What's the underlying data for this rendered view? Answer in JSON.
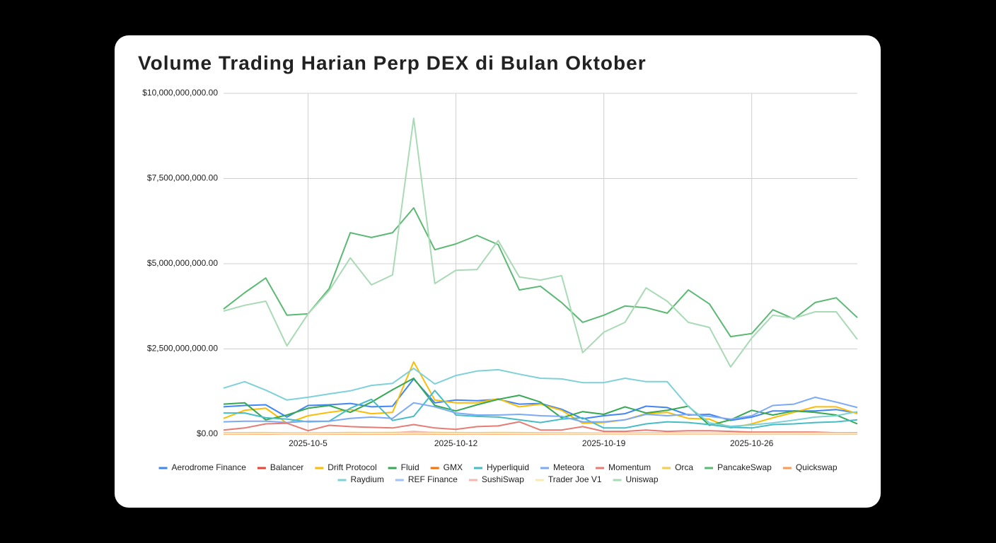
{
  "chart_data": {
    "type": "line",
    "title": "Volume Trading Harian Perp DEX di Bulan Oktober",
    "categories": [
      null,
      null,
      null,
      null,
      "2025-10-5",
      null,
      null,
      null,
      null,
      null,
      null,
      "2025-10-12",
      null,
      null,
      null,
      null,
      null,
      null,
      "2025-10-19",
      null,
      null,
      null,
      null,
      null,
      null,
      "2025-10-26",
      null,
      null,
      null,
      null,
      null
    ],
    "ylim": [
      0,
      10000000000
    ],
    "yticks": [
      {
        "value": 0,
        "label": "$0.00"
      },
      {
        "value": 2500000000,
        "label": "$2,500,000,000.00"
      },
      {
        "value": 5000000000,
        "label": "$5,000,000,000.00"
      },
      {
        "value": 7500000000,
        "label": "$7,500,000,000.00"
      },
      {
        "value": 10000000000,
        "label": "$10,000,000,000.00"
      }
    ],
    "grid": true,
    "legend": "bottom",
    "series": [
      {
        "name": "Aerodrome Finance",
        "color": "#4285f4",
        "values": [
          800000000.0,
          840000000.0,
          860000000.0,
          500000000.0,
          840000000.0,
          860000000.0,
          900000000.0,
          800000000.0,
          820000000.0,
          1620000000.0,
          920000000.0,
          1000000000.0,
          980000000.0,
          1020000000.0,
          880000000.0,
          900000000.0,
          730000000.0,
          450000000.0,
          540000000.0,
          600000000.0,
          820000000.0,
          780000000.0,
          560000000.0,
          580000000.0,
          400000000.0,
          500000000.0,
          680000000.0,
          680000000.0,
          680000000.0,
          720000000.0,
          620000000.0
        ]
      },
      {
        "name": "Balancer",
        "color": "#ea4335",
        "values": [
          15000000.0,
          14000000.0,
          16000000.0,
          13000000.0,
          12000000.0,
          15000000.0,
          16000000.0,
          14000000.0,
          15000000.0,
          22000000.0,
          16000000.0,
          15000000.0,
          14000000.0,
          15000000.0,
          14000000.0,
          13000000.0,
          12000000.0,
          11000000.0,
          11000000.0,
          12000000.0,
          13000000.0,
          12000000.0,
          12000000.0,
          11000000.0,
          10000000.0,
          10000000.0,
          11000000.0,
          11000000.0,
          12000000.0,
          11000000.0,
          10000000.0
        ]
      },
      {
        "name": "Drift Protocol",
        "color": "#fbbc04",
        "values": [
          460000000.0,
          700000000.0,
          760000000.0,
          320000000.0,
          540000000.0,
          640000000.0,
          720000000.0,
          600000000.0,
          640000000.0,
          2120000000.0,
          1000000000.0,
          920000000.0,
          920000000.0,
          1040000000.0,
          800000000.0,
          880000000.0,
          700000000.0,
          320000000.0,
          340000000.0,
          420000000.0,
          600000000.0,
          640000000.0,
          460000000.0,
          440000000.0,
          180000000.0,
          300000000.0,
          480000000.0,
          640000000.0,
          800000000.0,
          800000000.0,
          600000000.0
        ]
      },
      {
        "name": "Fluid",
        "color": "#34a853",
        "values": [
          880000000.0,
          920000000.0,
          420000000.0,
          560000000.0,
          760000000.0,
          840000000.0,
          640000000.0,
          940000000.0,
          1300000000.0,
          1640000000.0,
          840000000.0,
          680000000.0,
          860000000.0,
          1020000000.0,
          1140000000.0,
          940000000.0,
          480000000.0,
          660000000.0,
          580000000.0,
          800000000.0,
          620000000.0,
          700000000.0,
          820000000.0,
          260000000.0,
          420000000.0,
          700000000.0,
          560000000.0,
          680000000.0,
          640000000.0,
          560000000.0,
          300000000.0
        ]
      },
      {
        "name": "GMX",
        "color": "#ff6d01",
        "values": [
          25000000.0,
          24000000.0,
          26000000.0,
          22000000.0,
          23000000.0,
          25000000.0,
          28000000.0,
          26000000.0,
          27000000.0,
          38000000.0,
          29000000.0,
          26000000.0,
          25000000.0,
          27000000.0,
          26000000.0,
          24000000.0,
          22000000.0,
          21000000.0,
          20000000.0,
          21000000.0,
          23000000.0,
          22000000.0,
          21000000.0,
          20000000.0,
          18000000.0,
          19000000.0,
          20000000.0,
          21000000.0,
          22000000.0,
          20000000.0,
          19000000.0
        ]
      },
      {
        "name": "Hyperliquid",
        "color": "#46bdc6",
        "values": [
          620000000.0,
          620000000.0,
          480000000.0,
          440000000.0,
          360000000.0,
          380000000.0,
          760000000.0,
          1020000000.0,
          400000000.0,
          520000000.0,
          1280000000.0,
          560000000.0,
          520000000.0,
          500000000.0,
          420000000.0,
          340000000.0,
          440000000.0,
          480000000.0,
          180000000.0,
          180000000.0,
          300000000.0,
          360000000.0,
          340000000.0,
          280000000.0,
          200000000.0,
          180000000.0,
          280000000.0,
          300000000.0,
          340000000.0,
          360000000.0,
          420000000.0
        ]
      },
      {
        "name": "Meteora",
        "color": "#7baaf7",
        "values": [
          360000000.0,
          380000000.0,
          380000000.0,
          340000000.0,
          380000000.0,
          380000000.0,
          460000000.0,
          500000000.0,
          460000000.0,
          920000000.0,
          800000000.0,
          620000000.0,
          560000000.0,
          560000000.0,
          580000000.0,
          540000000.0,
          520000000.0,
          360000000.0,
          360000000.0,
          420000000.0,
          580000000.0,
          540000000.0,
          580000000.0,
          520000000.0,
          440000000.0,
          540000000.0,
          840000000.0,
          880000000.0,
          1080000000.0,
          940000000.0,
          780000000.0
        ]
      },
      {
        "name": "Momentum",
        "color": "#e67c73",
        "values": [
          120000000.0,
          180000000.0,
          300000000.0,
          320000000.0,
          100000000.0,
          260000000.0,
          220000000.0,
          200000000.0,
          180000000.0,
          280000000.0,
          180000000.0,
          140000000.0,
          220000000.0,
          240000000.0,
          360000000.0,
          120000000.0,
          120000000.0,
          220000000.0,
          80000000.0,
          80000000.0,
          120000000.0,
          80000000.0,
          100000000.0,
          100000000.0,
          80000000.0,
          60000000.0,
          60000000.0,
          60000000.0,
          60000000.0,
          40000000.0,
          40000000.0
        ]
      },
      {
        "name": "Orca",
        "color": "#f7cb4d",
        "values": [
          40000000.0,
          42000000.0,
          44000000.0,
          38000000.0,
          36000000.0,
          40000000.0,
          46000000.0,
          44000000.0,
          45000000.0,
          60000000.0,
          50000000.0,
          44000000.0,
          42000000.0,
          46000000.0,
          44000000.0,
          40000000.0,
          38000000.0,
          34000000.0,
          32000000.0,
          34000000.0,
          38000000.0,
          36000000.0,
          34000000.0,
          32000000.0,
          28000000.0,
          30000000.0,
          32000000.0,
          34000000.0,
          36000000.0,
          34000000.0,
          30000000.0
        ]
      },
      {
        "name": "PancakeSwap",
        "color": "#5bb974",
        "values": [
          3670000000.0,
          4150000000.0,
          4580000000.0,
          3490000000.0,
          3530000000.0,
          4270000000.0,
          5910000000.0,
          5770000000.0,
          5910000000.0,
          6640000000.0,
          5410000000.0,
          5580000000.0,
          5830000000.0,
          5560000000.0,
          4230000000.0,
          4340000000.0,
          3860000000.0,
          3280000000.0,
          3490000000.0,
          3760000000.0,
          3710000000.0,
          3550000000.0,
          4230000000.0,
          3820000000.0,
          2860000000.0,
          2950000000.0,
          3650000000.0,
          3380000000.0,
          3860000000.0,
          4000000000.0,
          3420000000.0
        ]
      },
      {
        "name": "Quickswap",
        "color": "#ff994d",
        "values": [
          6000000.0,
          5000000.0,
          6000000.0,
          5000000.0,
          5000000.0,
          6000000.0,
          7000000.0,
          6000000.0,
          6000000.0,
          9000000.0,
          7000000.0,
          6000000.0,
          6000000.0,
          6000000.0,
          5000000.0,
          5000000.0,
          5000000.0,
          4000000.0,
          4000000.0,
          4000000.0,
          5000000.0,
          5000000.0,
          4000000.0,
          4000000.0,
          4000000.0,
          4000000.0,
          4000000.0,
          4000000.0,
          5000000.0,
          4000000.0,
          4000000.0
        ]
      },
      {
        "name": "Raydium",
        "color": "#7ed1d7",
        "values": [
          1350000000.0,
          1540000000.0,
          1290000000.0,
          1000000000.0,
          1080000000.0,
          1180000000.0,
          1270000000.0,
          1430000000.0,
          1490000000.0,
          1930000000.0,
          1470000000.0,
          1720000000.0,
          1850000000.0,
          1890000000.0,
          1760000000.0,
          1640000000.0,
          1620000000.0,
          1510000000.0,
          1510000000.0,
          1640000000.0,
          1540000000.0,
          1540000000.0,
          810000000.0,
          330000000.0,
          230000000.0,
          270000000.0,
          330000000.0,
          410000000.0,
          500000000.0,
          540000000.0,
          660000000.0
        ]
      },
      {
        "name": "REF Finance",
        "color": "#a1c2fa",
        "values": [
          20000000.0,
          22000000.0,
          21000000.0,
          19000000.0,
          20000000.0,
          22000000.0,
          24000000.0,
          23000000.0,
          23000000.0,
          30000000.0,
          25000000.0,
          22000000.0,
          21000000.0,
          22000000.0,
          21000000.0,
          20000000.0,
          19000000.0,
          18000000.0,
          17000000.0,
          18000000.0,
          19000000.0,
          18000000.0,
          18000000.0,
          17000000.0,
          16000000.0,
          16000000.0,
          17000000.0,
          17000000.0,
          18000000.0,
          17000000.0,
          16000000.0
        ]
      },
      {
        "name": "SushiSwap",
        "color": "#f4b6b0",
        "values": [
          30000000.0,
          32000000.0,
          34000000.0,
          30000000.0,
          28000000.0,
          32000000.0,
          36000000.0,
          34000000.0,
          35000000.0,
          80000000.0,
          42000000.0,
          34000000.0,
          32000000.0,
          34000000.0,
          33000000.0,
          30000000.0,
          28000000.0,
          26000000.0,
          25000000.0,
          26000000.0,
          28000000.0,
          27000000.0,
          26000000.0,
          25000000.0,
          22000000.0,
          23000000.0,
          24000000.0,
          25000000.0,
          26000000.0,
          24000000.0,
          23000000.0
        ]
      },
      {
        "name": "Trader Joe V1",
        "color": "#fce8b2",
        "values": [
          18000000.0,
          19000000.0,
          20000000.0,
          17000000.0,
          17000000.0,
          19000000.0,
          21000000.0,
          20000000.0,
          20000000.0,
          28000000.0,
          22000000.0,
          20000000.0,
          19000000.0,
          20000000.0,
          19000000.0,
          18000000.0,
          17000000.0,
          16000000.0,
          16000000.0,
          16000000.0,
          17000000.0,
          17000000.0,
          16000000.0,
          16000000.0,
          14000000.0,
          15000000.0,
          15000000.0,
          16000000.0,
          16000000.0,
          15000000.0,
          15000000.0
        ]
      },
      {
        "name": "Uniswap",
        "color": "#a8dab5",
        "values": [
          3610000000.0,
          3780000000.0,
          3900000000.0,
          2590000000.0,
          3530000000.0,
          4210000000.0,
          5170000000.0,
          4380000000.0,
          4670000000.0,
          9270000000.0,
          4420000000.0,
          4810000000.0,
          4830000000.0,
          5680000000.0,
          4610000000.0,
          4520000000.0,
          4650000000.0,
          2390000000.0,
          2990000000.0,
          3280000000.0,
          4290000000.0,
          3900000000.0,
          3280000000.0,
          3130000000.0,
          1970000000.0,
          2820000000.0,
          3490000000.0,
          3400000000.0,
          3590000000.0,
          3590000000.0,
          2780000000.0
        ]
      }
    ]
  }
}
